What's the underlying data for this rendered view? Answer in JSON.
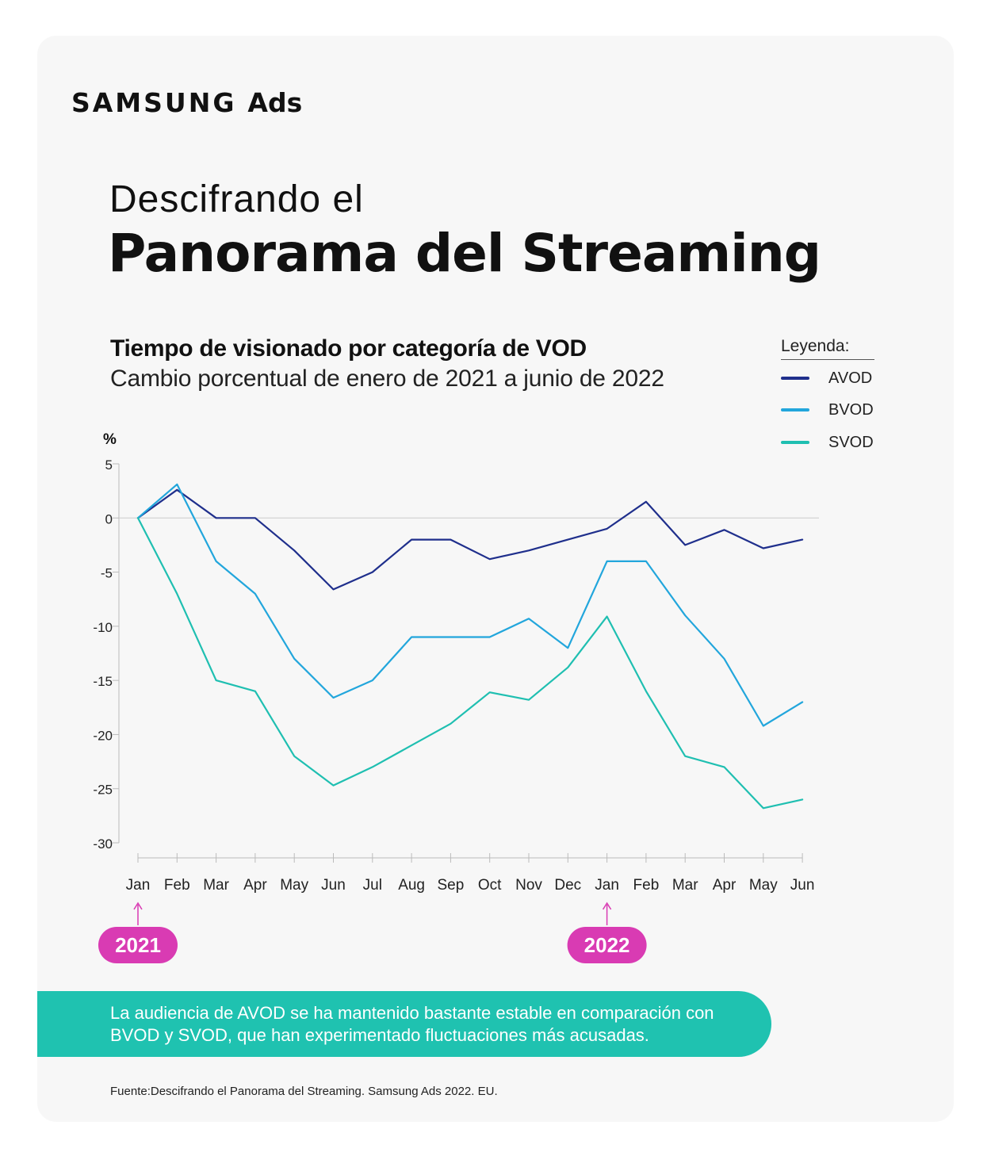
{
  "brand": {
    "name": "SAMSUNG",
    "product": "Ads"
  },
  "header": {
    "title_light": "Descifrando el",
    "title_bold": "Panorama del Streaming"
  },
  "legend": {
    "title": "Leyenda:",
    "items": [
      {
        "label": "AVOD",
        "color": "#1f2f8c"
      },
      {
        "label": "BVOD",
        "color": "#22a6dc"
      },
      {
        "label": "SVOD",
        "color": "#1fbfb1"
      }
    ]
  },
  "note": "La audiencia de AVOD se ha mantenido bastante estable en comparación con BVOD y SVOD, que han experimentado fluctuaciones más acusadas.",
  "source": "Fuente:Descifrando el Panorama del Streaming. Samsung Ads 2022. EU.",
  "colors": {
    "note_bg": "#1fc2b0",
    "year_badge": "#d93bb3"
  },
  "chart_data": {
    "type": "line",
    "title": "Tiempo de visionado por categoría de VOD",
    "subtitle": "Cambio porcentual de enero de 2021 a junio de 2022",
    "ylabel": "%",
    "xlabel": "",
    "ylim": [
      -30,
      5
    ],
    "yticks": [
      5,
      0,
      -5,
      -10,
      -15,
      -20,
      -25,
      -30
    ],
    "categories": [
      "Jan",
      "Feb",
      "Mar",
      "Apr",
      "May",
      "Jun",
      "Jul",
      "Aug",
      "Sep",
      "Oct",
      "Nov",
      "Dec",
      "Jan",
      "Feb",
      "Mar",
      "Apr",
      "May",
      "Jun"
    ],
    "series": [
      {
        "name": "AVOD",
        "color": "#1f2f8c",
        "values": [
          0,
          2.6,
          0,
          0,
          -3,
          -6.6,
          -5,
          -2,
          -2,
          -3.8,
          -3,
          -2,
          -1,
          1.5,
          -2.5,
          -1.1,
          -2.8,
          -2
        ]
      },
      {
        "name": "BVOD",
        "color": "#22a6dc",
        "values": [
          0,
          3.1,
          -4,
          -7,
          -13,
          -16.6,
          -15,
          -11,
          -11,
          -11,
          -9.3,
          -12,
          -4,
          -4,
          -9,
          -13,
          -19.2,
          -17
        ]
      },
      {
        "name": "SVOD",
        "color": "#1fbfb1",
        "values": [
          0,
          -7,
          -15,
          -16,
          -22,
          -24.7,
          -23,
          -21,
          -19,
          -16.1,
          -16.8,
          -13.8,
          -9.1,
          -16,
          -22,
          -23,
          -26.8,
          -26
        ]
      }
    ],
    "year_markers": [
      {
        "label": "2021",
        "category_index": 0
      },
      {
        "label": "2022",
        "category_index": 12
      }
    ]
  }
}
